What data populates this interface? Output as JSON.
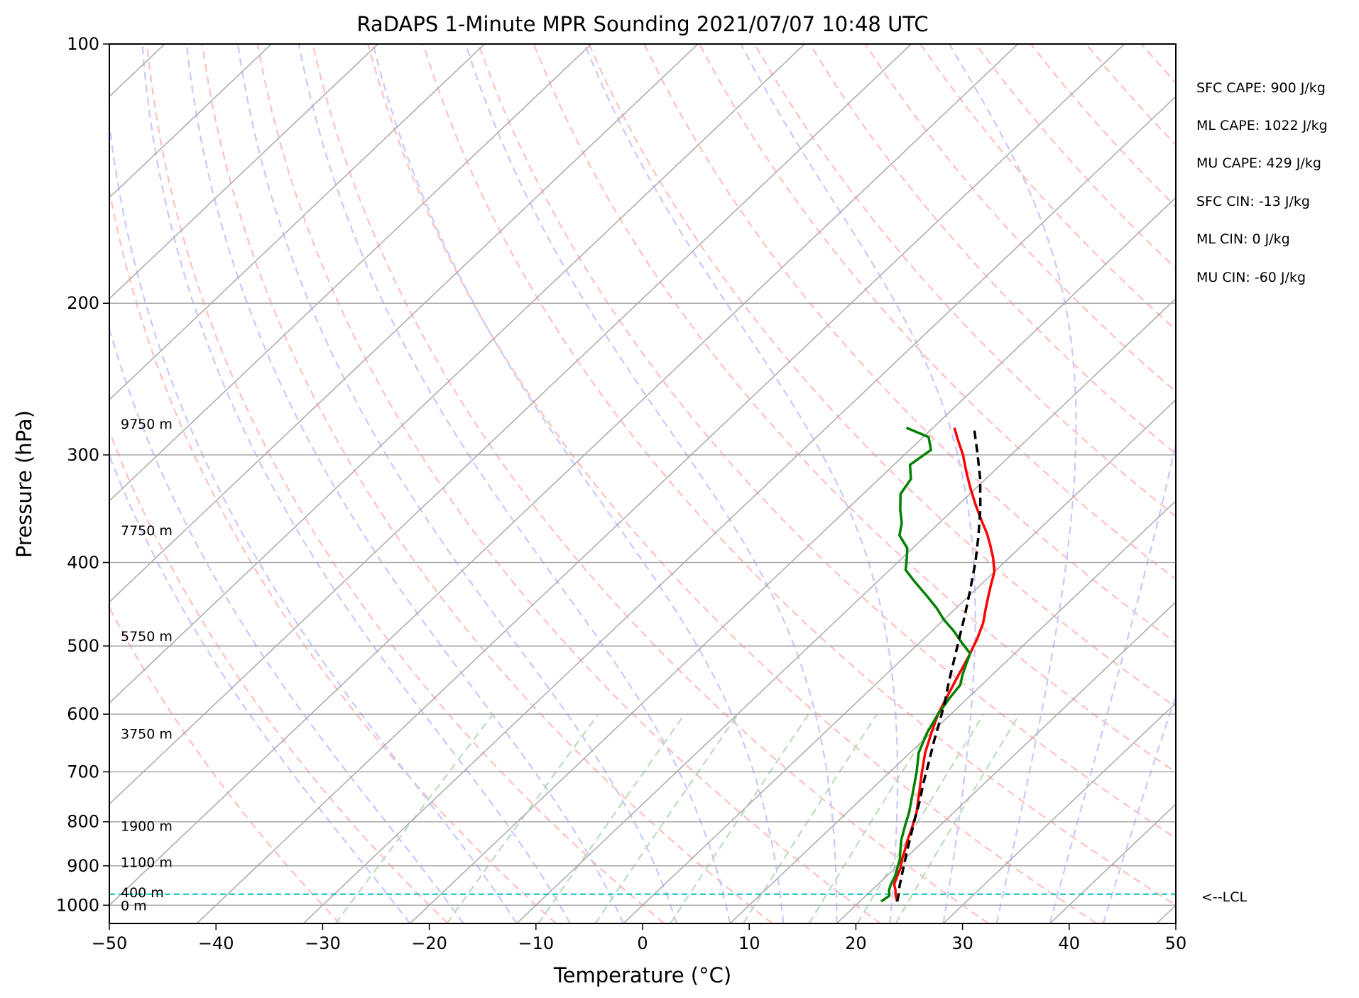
{
  "chart_data": {
    "type": "line",
    "title": "RaDAPS 1-Minute MPR Sounding 2021/07/07 10:48 UTC",
    "xlabel": "Temperature (°C)",
    "ylabel": "Pressure (hPa)",
    "xlim": [
      -50,
      50
    ],
    "ylim": [
      1050,
      100
    ],
    "y_scale": "log",
    "x_ticks": [
      "−50",
      "−40",
      "−30",
      "−20",
      "−10",
      "0",
      "10",
      "20",
      "30",
      "40",
      "50"
    ],
    "x_tick_values": [
      -50,
      -40,
      -30,
      -20,
      -10,
      0,
      10,
      20,
      30,
      40,
      50
    ],
    "y_ticks": [
      "100",
      "200",
      "300",
      "400",
      "500",
      "600",
      "700",
      "800",
      "900",
      "1000"
    ],
    "y_tick_values": [
      100,
      200,
      300,
      400,
      500,
      600,
      700,
      800,
      900,
      1000
    ],
    "grid": true,
    "height_labels": [
      {
        "text": "9750 m",
        "pressure": 276
      },
      {
        "text": "7750 m",
        "pressure": 367
      },
      {
        "text": "5750 m",
        "pressure": 487
      },
      {
        "text": "3750 m",
        "pressure": 632
      },
      {
        "text": "1900 m",
        "pressure": 809
      },
      {
        "text": "1100 m",
        "pressure": 891
      },
      {
        "text": "400 m",
        "pressure": 966
      },
      {
        "text": "0 m",
        "pressure": 1000
      }
    ],
    "lcl": {
      "pressure": 971,
      "label": "<--LCL"
    },
    "stats": [
      "SFC CAPE: 900 J/kg",
      "ML CAPE: 1022 J/kg",
      "MU CAPE: 429 J/kg",
      "SFC CIN: -13 J/kg",
      "ML CIN: 0 J/kg",
      "MU CIN: -60 J/kg"
    ],
    "series": [
      {
        "color": "#ff0000",
        "points": [
          [
            23.5,
            990
          ],
          [
            22.8,
            975
          ],
          [
            22.2,
            960
          ],
          [
            21.5,
            945
          ],
          [
            21.0,
            925
          ],
          [
            20.5,
            905
          ],
          [
            19.8,
            885
          ],
          [
            19.2,
            865
          ],
          [
            18.4,
            840
          ],
          [
            17.5,
            810
          ],
          [
            16.5,
            780
          ],
          [
            14.8,
            740
          ],
          [
            13.0,
            700
          ],
          [
            11.4,
            665
          ],
          [
            10.0,
            630
          ],
          [
            8.8,
            600
          ],
          [
            8.0,
            575
          ],
          [
            7.0,
            545
          ],
          [
            6.0,
            515
          ],
          [
            5.0,
            490
          ],
          [
            4.0,
            470
          ],
          [
            3.0,
            455
          ],
          [
            2.0,
            440
          ],
          [
            1.0,
            425
          ],
          [
            0.0,
            410
          ],
          [
            -1.5,
            395
          ],
          [
            -3.0,
            382
          ],
          [
            -4.5,
            370
          ],
          [
            -6.5,
            356
          ],
          [
            -8.5,
            342
          ],
          [
            -10.5,
            328
          ],
          [
            -12.5,
            314
          ],
          [
            -14.5,
            300
          ],
          [
            -16.5,
            288
          ],
          [
            -18.0,
            279
          ]
        ]
      },
      {
        "color": "#008000",
        "points": [
          [
            22.0,
            990
          ],
          [
            22.2,
            975
          ],
          [
            21.6,
            960
          ],
          [
            21.2,
            945
          ],
          [
            20.8,
            925
          ],
          [
            20.2,
            905
          ],
          [
            19.6,
            885
          ],
          [
            18.8,
            865
          ],
          [
            17.8,
            840
          ],
          [
            16.8,
            810
          ],
          [
            15.8,
            780
          ],
          [
            14.2,
            740
          ],
          [
            12.5,
            700
          ],
          [
            10.8,
            665
          ],
          [
            9.6,
            630
          ],
          [
            8.8,
            600
          ],
          [
            8.3,
            575
          ],
          [
            8.0,
            555
          ],
          [
            7.2,
            540
          ],
          [
            6.5,
            525
          ],
          [
            5.8,
            510
          ],
          [
            4.0,
            496
          ],
          [
            2.0,
            480
          ],
          [
            0.0,
            466
          ],
          [
            -1.8,
            452
          ],
          [
            -4.0,
            437
          ],
          [
            -6.5,
            421
          ],
          [
            -8.5,
            408
          ],
          [
            -9.5,
            396
          ],
          [
            -10.5,
            385
          ],
          [
            -12.5,
            372
          ],
          [
            -13.5,
            360
          ],
          [
            -15.0,
            347
          ],
          [
            -16.5,
            333
          ],
          [
            -17.0,
            320
          ],
          [
            -18.5,
            308
          ],
          [
            -18.0,
            296
          ],
          [
            -19.5,
            286
          ],
          [
            -22.5,
            279
          ]
        ]
      },
      {
        "color": "#000000",
        "dashed": true,
        "points": [
          [
            23.5,
            990
          ],
          [
            22.9,
            970
          ],
          [
            22.2,
            950
          ],
          [
            21.4,
            925
          ],
          [
            20.6,
            900
          ],
          [
            19.6,
            870
          ],
          [
            18.6,
            840
          ],
          [
            17.2,
            800
          ],
          [
            15.8,
            760
          ],
          [
            14.2,
            720
          ],
          [
            12.6,
            680
          ],
          [
            11.1,
            645
          ],
          [
            9.6,
            610
          ],
          [
            8.2,
            580
          ],
          [
            6.6,
            550
          ],
          [
            5.0,
            520
          ],
          [
            3.3,
            490
          ],
          [
            1.5,
            460
          ],
          [
            -0.5,
            430
          ],
          [
            -2.7,
            400
          ],
          [
            -5.0,
            373
          ],
          [
            -7.6,
            346
          ],
          [
            -10.5,
            320
          ],
          [
            -13.4,
            298
          ],
          [
            -16.0,
            280
          ]
        ]
      }
    ],
    "background_lines": {
      "isotherms_color": "#a9a9a9",
      "dry_adiabats_color": "#ffc0c0",
      "moist_adiabats_color": "#c8c8ff",
      "mixing_ratio_color": "#bcdcbc",
      "lcl_color": "#00bfbf"
    }
  }
}
